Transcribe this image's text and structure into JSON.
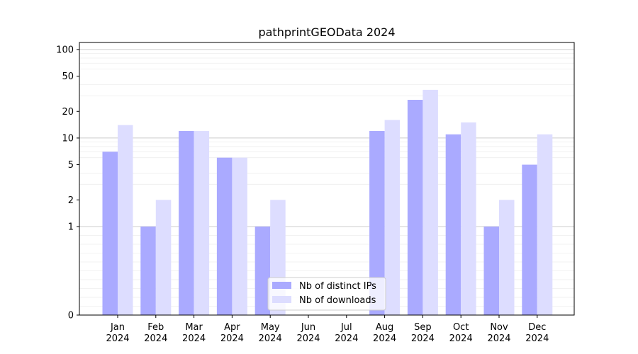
{
  "chart_data": {
    "type": "bar",
    "title": "pathprintGEOData 2024",
    "xlabel": "",
    "ylabel": "",
    "yscale": "symlog",
    "ylim": [
      0,
      120
    ],
    "yticks": [
      0,
      1,
      2,
      5,
      10,
      20,
      50,
      100
    ],
    "grid": "horizontal",
    "legend_position": "bottom-center",
    "categories": [
      [
        "Jan",
        "2024"
      ],
      [
        "Feb",
        "2024"
      ],
      [
        "Mar",
        "2024"
      ],
      [
        "Apr",
        "2024"
      ],
      [
        "May",
        "2024"
      ],
      [
        "Jun",
        "2024"
      ],
      [
        "Jul",
        "2024"
      ],
      [
        "Aug",
        "2024"
      ],
      [
        "Sep",
        "2024"
      ],
      [
        "Oct",
        "2024"
      ],
      [
        "Nov",
        "2024"
      ],
      [
        "Dec",
        "2024"
      ]
    ],
    "series": [
      {
        "name": "Nb of distinct IPs",
        "color": "#aaaaff",
        "values": [
          7,
          1,
          12,
          6,
          1,
          0,
          0,
          12,
          27,
          11,
          1,
          5
        ]
      },
      {
        "name": "Nb of downloads",
        "color": "#ddddff",
        "values": [
          14,
          2,
          12,
          6,
          2,
          0,
          0,
          16,
          35,
          15,
          2,
          11
        ]
      }
    ]
  }
}
